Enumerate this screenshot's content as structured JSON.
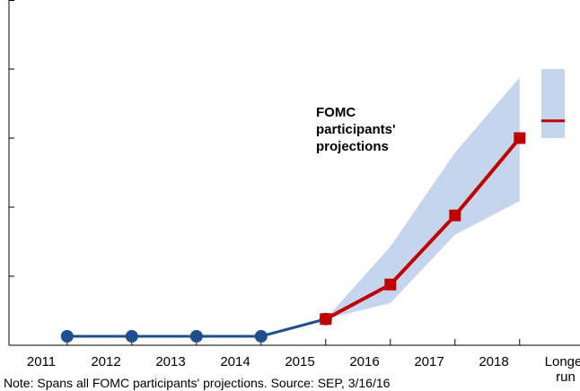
{
  "chart_data": {
    "type": "line",
    "categories": [
      "2011",
      "2012",
      "2013",
      "2014",
      "2015",
      "2016",
      "2017",
      "2018",
      "Longer run"
    ],
    "series": [
      {
        "color": "#1f4e8c",
        "marker": "circle",
        "values": [
          0.13,
          0.13,
          0.13,
          0.13,
          0.38,
          null,
          null,
          null,
          null
        ]
      },
      {
        "color": "#c00000",
        "marker": "square",
        "values": [
          null,
          null,
          null,
          null,
          0.38,
          0.88,
          1.88,
          3.0,
          3.25
        ]
      }
    ],
    "band": {
      "color": "#c5d5ee",
      "upper": [
        null,
        null,
        null,
        null,
        0.38,
        1.43,
        2.79,
        3.88,
        4.0
      ],
      "lower": [
        null,
        null,
        null,
        null,
        0.38,
        0.61,
        1.6,
        2.09,
        3.0
      ]
    },
    "ylim": [
      0,
      5
    ],
    "yticks": [
      0,
      1,
      2,
      3,
      4,
      5
    ],
    "annotation": "FOMC participants' projections",
    "note": "Note: Spans all FOMC participants' projections. Source: SEP, 3/16/16"
  }
}
